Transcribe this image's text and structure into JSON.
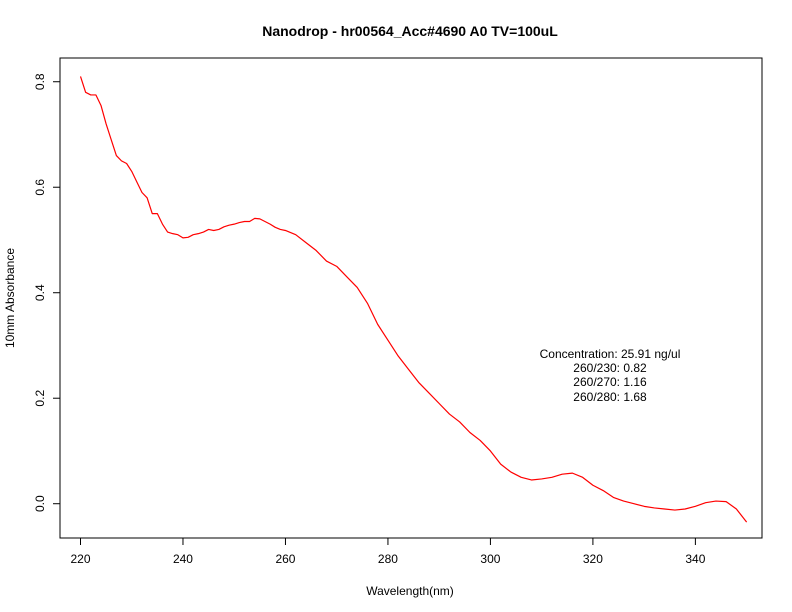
{
  "chart_data": {
    "type": "line",
    "title": "Nanodrop - hr00564_Acc#4690  A0  TV=100uL",
    "xlabel": "Wavelength(nm)",
    "ylabel": "10mm Absorbance",
    "xlim": [
      216,
      353
    ],
    "ylim": [
      -0.065,
      0.845
    ],
    "xticks": [
      220,
      240,
      260,
      280,
      300,
      320,
      340
    ],
    "xtick_labels": [
      "220",
      "240",
      "260",
      "280",
      "300",
      "320",
      "340"
    ],
    "yticks": [
      0.0,
      0.2,
      0.4,
      0.6,
      0.8
    ],
    "ytick_labels": [
      "0.0",
      "0.2",
      "0.4",
      "0.6",
      "0.8"
    ],
    "grid": false,
    "line_color": "#ff0000",
    "series": [
      {
        "x": [
          220,
          221,
          222,
          223,
          224,
          225,
          226,
          227,
          228,
          229,
          230,
          231,
          232,
          233,
          234,
          235,
          236,
          237,
          238,
          239,
          240,
          241,
          242,
          243,
          244,
          245,
          246,
          247,
          248,
          249,
          250,
          251,
          252,
          253,
          254,
          255,
          256,
          257,
          258,
          259,
          260,
          262,
          264,
          266,
          268,
          270,
          272,
          274,
          276,
          278,
          280,
          282,
          284,
          286,
          288,
          290,
          292,
          294,
          296,
          298,
          300,
          302,
          304,
          306,
          308,
          310,
          312,
          314,
          316,
          318,
          320,
          322,
          324,
          326,
          328,
          330,
          332,
          334,
          336,
          338,
          340,
          342,
          344,
          346,
          348,
          350
        ],
        "y": [
          0.81,
          0.78,
          0.775,
          0.775,
          0.755,
          0.72,
          0.69,
          0.66,
          0.65,
          0.645,
          0.63,
          0.61,
          0.59,
          0.58,
          0.55,
          0.55,
          0.53,
          0.515,
          0.512,
          0.51,
          0.504,
          0.505,
          0.51,
          0.512,
          0.515,
          0.52,
          0.518,
          0.52,
          0.525,
          0.528,
          0.53,
          0.533,
          0.535,
          0.535,
          0.541,
          0.54,
          0.535,
          0.53,
          0.524,
          0.52,
          0.518,
          0.51,
          0.495,
          0.48,
          0.46,
          0.45,
          0.43,
          0.41,
          0.38,
          0.34,
          0.31,
          0.28,
          0.255,
          0.23,
          0.21,
          0.19,
          0.17,
          0.155,
          0.135,
          0.12,
          0.1,
          0.075,
          0.06,
          0.05,
          0.045,
          0.047,
          0.05,
          0.056,
          0.058,
          0.05,
          0.035,
          0.025,
          0.012,
          0.005,
          0.0,
          -0.005,
          -0.008,
          -0.01,
          -0.012,
          -0.01,
          -0.005,
          0.002,
          0.005,
          0.004,
          -0.01,
          -0.035
        ]
      }
    ],
    "annotations": [
      "Concentration: 25.91 ng/ul",
      "260/230: 0.82",
      "260/270: 1.16",
      "260/280: 1.68"
    ]
  }
}
